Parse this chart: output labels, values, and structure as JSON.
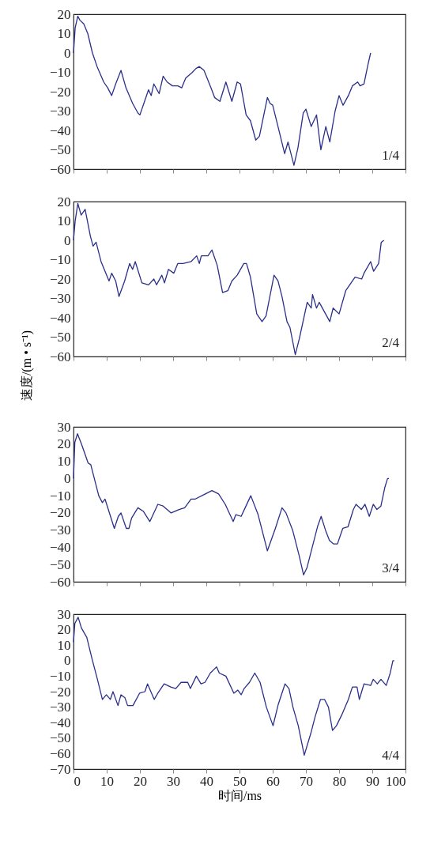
{
  "chart_data": [
    {
      "type": "line",
      "xlim": [
        0,
        100
      ],
      "xticks": [
        0,
        10,
        20,
        30,
        40,
        50,
        60,
        70,
        80,
        90,
        100
      ],
      "ylim": [
        -60,
        20
      ],
      "yticks": [
        -60,
        -50,
        -40,
        -30,
        -20,
        -10,
        0,
        10,
        20
      ],
      "tick_labels": "y",
      "annotations": [
        "1/4"
      ],
      "series": [
        {
          "color": "#2b2f8a",
          "x": [
            0,
            0.5,
            1.3,
            1.9,
            3.1,
            4.3,
            5.7,
            7.1,
            9.1,
            10.3,
            11.5,
            12.7,
            14.3,
            15.8,
            17.8,
            19.4,
            20,
            21.4,
            22.6,
            23.4,
            24.2,
            25.8,
            27,
            28.2,
            29.8,
            31.4,
            32.6,
            33.8,
            35.8,
            36.9,
            37.9,
            39.3,
            41.4,
            42.5,
            44.1,
            45.9,
            47.7,
            49.3,
            50.3,
            52,
            53.3,
            54.9,
            56,
            58.4,
            59.2,
            60,
            61.6,
            63.6,
            64.6,
            66.4,
            67.6,
            69.2,
            70,
            71.6,
            73.2,
            74.5,
            76,
            77.2,
            78.8,
            80,
            81.2,
            82.8,
            84,
            85.6,
            86.3,
            87.5,
            88.7,
            89.5
          ],
          "values": [
            0,
            13,
            19,
            17,
            15,
            10,
            0,
            -7,
            -15,
            -18,
            -22,
            -16,
            -9,
            -18,
            -26,
            -31,
            -32,
            -25,
            -19,
            -22,
            -16,
            -21,
            -12,
            -15,
            -17,
            -17,
            -18,
            -13,
            -10,
            -8,
            -7,
            -9,
            -18,
            -23,
            -25,
            -15,
            -25,
            -15,
            -16,
            -32,
            -35,
            -45,
            -43,
            -23,
            -26,
            -27,
            -38,
            -52,
            -46,
            -58,
            -49,
            -31,
            -29,
            -38,
            -32,
            -50,
            -38,
            -46,
            -30,
            -22,
            -27,
            -22,
            -17,
            -15,
            -17,
            -16,
            -6,
            0
          ]
        }
      ]
    },
    {
      "type": "line",
      "xlim": [
        0,
        100
      ],
      "xticks": [
        0,
        10,
        20,
        30,
        40,
        50,
        60,
        70,
        80,
        90,
        100
      ],
      "ylim": [
        -60,
        20
      ],
      "yticks": [
        -60,
        -50,
        -40,
        -30,
        -20,
        -10,
        0,
        10,
        20
      ],
      "tick_labels": "y",
      "ylabel": "速度/(m • s⁻¹)",
      "annotations": [
        "2/4"
      ],
      "series": [
        {
          "color": "#2b2f8a",
          "x": [
            0,
            0.5,
            1.3,
            2.3,
            3.5,
            5.1,
            5.9,
            6.8,
            8.3,
            10.7,
            11.5,
            12.7,
            13.7,
            15.4,
            16.9,
            17.8,
            18.6,
            20.6,
            22.6,
            24.2,
            25,
            26.6,
            27.4,
            28.6,
            30.2,
            31.4,
            33,
            35.4,
            37.1,
            37.9,
            38.5,
            40.5,
            41.7,
            43.3,
            44.9,
            46.5,
            47.7,
            49.3,
            51.3,
            52.1,
            53.3,
            55.2,
            56.8,
            58,
            60.4,
            61.6,
            62.8,
            64.3,
            65.2,
            66.8,
            68,
            70.4,
            71.6,
            72,
            73.2,
            74,
            75.6,
            77.2,
            78.2,
            80,
            82,
            83.2,
            84.8,
            86.8,
            87.5,
            89.5,
            90.4,
            91.9,
            92.7,
            93.5
          ],
          "values": [
            0,
            10,
            19,
            13,
            16,
            2,
            -3,
            -1,
            -11,
            -21,
            -17,
            -21,
            -29,
            -21,
            -12,
            -15,
            -11,
            -22,
            -23,
            -20,
            -23,
            -18,
            -22,
            -15,
            -17,
            -12,
            -12,
            -11,
            -8,
            -12,
            -8,
            -8,
            -5,
            -13,
            -27,
            -26,
            -21,
            -18,
            -12,
            -12,
            -19,
            -38,
            -42,
            -39,
            -18,
            -21,
            -29,
            -42,
            -45,
            -59,
            -51,
            -32,
            -35,
            -28,
            -35,
            -32,
            -37,
            -42,
            -35,
            -38,
            -26,
            -23,
            -19,
            -20,
            -17,
            -11,
            -16,
            -12,
            -1,
            0
          ]
        }
      ]
    },
    {
      "type": "line",
      "xlim": [
        0,
        100
      ],
      "xticks": [
        0,
        10,
        20,
        30,
        40,
        50,
        60,
        70,
        80,
        90,
        100
      ],
      "ylim": [
        -60,
        30
      ],
      "yticks": [
        -60,
        -50,
        -40,
        -30,
        -20,
        -10,
        0,
        10,
        20,
        30
      ],
      "tick_labels": "y",
      "annotations": [
        "3/4"
      ],
      "series": [
        {
          "color": "#2b2f8a",
          "x": [
            0,
            0.4,
            1.2,
            2.4,
            4.4,
            5.2,
            7.6,
            8.7,
            9.5,
            12.3,
            13.5,
            14.3,
            15.9,
            16.7,
            17.5,
            19.4,
            21,
            23,
            25.4,
            27,
            29.4,
            31.8,
            33.5,
            35.4,
            36.6,
            39.7,
            41.7,
            43.7,
            45.7,
            48.1,
            48.9,
            50.5,
            51.7,
            53.4,
            55.6,
            58.4,
            60.8,
            62.8,
            64,
            66,
            68,
            69.3,
            70.3,
            73.5,
            74.6,
            75.9,
            77.1,
            78.3,
            79.5,
            81.1,
            82.7,
            84.3,
            85.1,
            86.7,
            87.8,
            89.1,
            90.3,
            91.4,
            92.6,
            93.8,
            94.6,
            95
          ],
          "values": [
            0,
            21,
            26,
            20,
            9,
            8,
            -10,
            -14,
            -12,
            -29,
            -22,
            -20,
            -29,
            -29,
            -23,
            -17,
            -19,
            -25,
            -15,
            -16,
            -20,
            -18,
            -17,
            -12,
            -12,
            -9,
            -7,
            -9,
            -15,
            -25,
            -21,
            -22,
            -17,
            -10,
            -21,
            -42,
            -29,
            -17,
            -20,
            -30,
            -45,
            -56,
            -52,
            -28,
            -22,
            -30,
            -36,
            -38,
            -38,
            -29,
            -28,
            -18,
            -15,
            -18,
            -15,
            -22,
            -15,
            -18,
            -16,
            -5,
            0,
            0
          ]
        }
      ]
    },
    {
      "type": "line",
      "xlim": [
        0,
        100
      ],
      "xticks": [
        0,
        10,
        20,
        30,
        40,
        50,
        60,
        70,
        80,
        90,
        100
      ],
      "ylim": [
        -70,
        30
      ],
      "yticks": [
        -70,
        -60,
        -50,
        -40,
        -30,
        -20,
        -10,
        0,
        10,
        20,
        30
      ],
      "xlabel": "时间/ms",
      "annotations": [
        "4/4"
      ],
      "series": [
        {
          "color": "#2b2f8a",
          "x": [
            0,
            0.4,
            1.4,
            2.4,
            4,
            5.6,
            7.2,
            8.7,
            9.9,
            11.1,
            11.9,
            13.4,
            14.3,
            15.5,
            16.3,
            17.9,
            19.9,
            21.5,
            22.3,
            24.3,
            25.4,
            27.3,
            29.3,
            30.8,
            32.4,
            34.4,
            35.2,
            37,
            38.4,
            39.6,
            41.2,
            43.1,
            43.9,
            45.9,
            48.3,
            49.5,
            50.5,
            51.4,
            53,
            54.6,
            56.2,
            58.1,
            60.1,
            61.7,
            63.7,
            64.9,
            66.1,
            67.7,
            69.5,
            71.6,
            72.8,
            74.4,
            75.6,
            76.8,
            78,
            79.2,
            80.8,
            82.8,
            84,
            85.4,
            86.1,
            87.5,
            89.5,
            90.3,
            91.5,
            92.6,
            94.2,
            95.4,
            96.2,
            96.6
          ],
          "values": [
            12,
            24,
            28,
            21,
            15,
            1,
            -12,
            -25,
            -22,
            -25,
            -20,
            -29,
            -22,
            -24,
            -29,
            -29,
            -21,
            -20,
            -15,
            -25,
            -21,
            -15,
            -17,
            -18,
            -14,
            -14,
            -18,
            -10,
            -15,
            -14,
            -8,
            -4,
            -8,
            -10,
            -21,
            -19,
            -22,
            -18,
            -14,
            -8,
            -14,
            -30,
            -42,
            -28,
            -15,
            -18,
            -30,
            -42,
            -61,
            -46,
            -36,
            -25,
            -25,
            -30,
            -45,
            -42,
            -35,
            -25,
            -17,
            -17,
            -25,
            -15,
            -16,
            -12,
            -15,
            -12,
            -16,
            -8,
            0,
            0
          ]
        }
      ]
    }
  ]
}
